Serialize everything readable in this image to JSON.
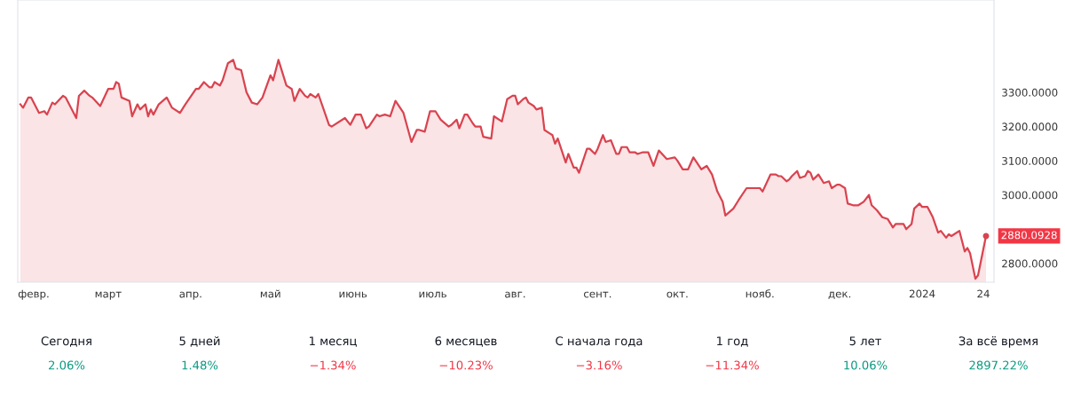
{
  "chart_data": [
    {
      "type": "area",
      "color": "#d9434f",
      "x": [
        "2023-01-27",
        "2023-01-28",
        "2023-01-30",
        "2023-01-31",
        "2023-02-03",
        "2023-02-05",
        "2023-02-06",
        "2023-02-08",
        "2023-02-09",
        "2023-02-12",
        "2023-02-13",
        "2023-02-17",
        "2023-02-18",
        "2023-02-20",
        "2023-02-22",
        "2023-02-23",
        "2023-02-26",
        "2023-03-01",
        "2023-03-03",
        "2023-03-04",
        "2023-03-05",
        "2023-03-06",
        "2023-03-09",
        "2023-03-10",
        "2023-03-12",
        "2023-03-13",
        "2023-03-15",
        "2023-03-16",
        "2023-03-17",
        "2023-03-18",
        "2023-03-20",
        "2023-03-23",
        "2023-03-25",
        "2023-03-28",
        "2023-03-30",
        "2023-04-03",
        "2023-04-04",
        "2023-04-06",
        "2023-04-08",
        "2023-04-09",
        "2023-04-10",
        "2023-04-12",
        "2023-04-13",
        "2023-04-15",
        "2023-04-17",
        "2023-04-18",
        "2023-04-20",
        "2023-04-22",
        "2023-04-24",
        "2023-04-26",
        "2023-04-28",
        "2023-05-01",
        "2023-05-02",
        "2023-05-04",
        "2023-05-07",
        "2023-05-09",
        "2023-05-10",
        "2023-05-12",
        "2023-05-14",
        "2023-05-15",
        "2023-05-16",
        "2023-05-18",
        "2023-05-19",
        "2023-05-23",
        "2023-05-24",
        "2023-05-29",
        "2023-05-31",
        "2023-06-02",
        "2023-06-04",
        "2023-06-06",
        "2023-06-07",
        "2023-06-10",
        "2023-06-11",
        "2023-06-13",
        "2023-06-15",
        "2023-06-17",
        "2023-06-20",
        "2023-06-23",
        "2023-06-25",
        "2023-06-26",
        "2023-06-28",
        "2023-06-30",
        "2023-07-02",
        "2023-07-04",
        "2023-07-07",
        "2023-07-08",
        "2023-07-10",
        "2023-07-11",
        "2023-07-13",
        "2023-07-14",
        "2023-07-16",
        "2023-07-17",
        "2023-07-19",
        "2023-07-20",
        "2023-07-23",
        "2023-07-24",
        "2023-07-27",
        "2023-07-29",
        "2023-07-31",
        "2023-08-01",
        "2023-08-02",
        "2023-08-04",
        "2023-08-05",
        "2023-08-06",
        "2023-08-08",
        "2023-08-09",
        "2023-08-11",
        "2023-08-12",
        "2023-08-14",
        "2023-08-15",
        "2023-08-16",
        "2023-08-17",
        "2023-08-20",
        "2023-08-21",
        "2023-08-23",
        "2023-08-24",
        "2023-08-25",
        "2023-08-28",
        "2023-08-29",
        "2023-08-31",
        "2023-09-01",
        "2023-09-03",
        "2023-09-04",
        "2023-09-06",
        "2023-09-08",
        "2023-09-09",
        "2023-09-10",
        "2023-09-12",
        "2023-09-13",
        "2023-09-15",
        "2023-09-16",
        "2023-09-18",
        "2023-09-20",
        "2023-09-22",
        "2023-09-24",
        "2023-09-27",
        "2023-09-30",
        "2023-10-01",
        "2023-10-03",
        "2023-10-05",
        "2023-10-07",
        "2023-10-10",
        "2023-10-12",
        "2023-10-14",
        "2023-10-16",
        "2023-10-18",
        "2023-10-19",
        "2023-10-22",
        "2023-10-24",
        "2023-10-27",
        "2023-10-28",
        "2023-10-30",
        "2023-11-01",
        "2023-11-02",
        "2023-11-05",
        "2023-11-07",
        "2023-11-08",
        "2023-11-09",
        "2023-11-11",
        "2023-11-12",
        "2023-11-13",
        "2023-11-15",
        "2023-11-16",
        "2023-11-18",
        "2023-11-19",
        "2023-11-20",
        "2023-11-21",
        "2023-11-23",
        "2023-11-25",
        "2023-11-27",
        "2023-11-28",
        "2023-11-30",
        "2023-12-01",
        "2023-12-03",
        "2023-12-04",
        "2023-12-06",
        "2023-12-08",
        "2023-12-10",
        "2023-12-12",
        "2023-12-13",
        "2023-12-15",
        "2023-12-17",
        "2023-12-19",
        "2023-12-21",
        "2023-12-22",
        "2023-12-24",
        "2023-12-25",
        "2023-12-26",
        "2023-12-28",
        "2023-12-29",
        "2023-12-31",
        "2024-01-01",
        "2024-01-03",
        "2024-01-04",
        "2024-01-05",
        "2024-01-07",
        "2024-01-08",
        "2024-01-10",
        "2024-01-11",
        "2024-01-12",
        "2024-01-13",
        "2024-01-15",
        "2024-01-17",
        "2024-01-18",
        "2024-01-19",
        "2024-01-21",
        "2024-01-22",
        "2024-01-25"
      ],
      "values": [
        3265,
        3255,
        3285,
        3285,
        3240,
        3245,
        3235,
        3270,
        3265,
        3290,
        3285,
        3225,
        3290,
        3305,
        3290,
        3285,
        3260,
        3310,
        3310,
        3330,
        3325,
        3285,
        3275,
        3230,
        3265,
        3250,
        3265,
        3230,
        3250,
        3235,
        3265,
        3285,
        3255,
        3240,
        3265,
        3310,
        3310,
        3330,
        3315,
        3315,
        3330,
        3320,
        3335,
        3385,
        3395,
        3370,
        3365,
        3300,
        3270,
        3265,
        3285,
        3350,
        3335,
        3395,
        3320,
        3310,
        3275,
        3310,
        3290,
        3285,
        3295,
        3285,
        3295,
        3205,
        3200,
        3225,
        3205,
        3235,
        3235,
        3195,
        3200,
        3235,
        3230,
        3235,
        3230,
        3275,
        3240,
        3155,
        3190,
        3190,
        3185,
        3245,
        3245,
        3220,
        3200,
        3205,
        3220,
        3195,
        3235,
        3235,
        3210,
        3200,
        3200,
        3170,
        3165,
        3230,
        3215,
        3280,
        3290,
        3290,
        3265,
        3280,
        3285,
        3270,
        3260,
        3250,
        3255,
        3190,
        3180,
        3175,
        3150,
        3165,
        3095,
        3120,
        3080,
        3080,
        3065,
        3135,
        3135,
        3120,
        3135,
        3175,
        3155,
        3160,
        3120,
        3120,
        3140,
        3140,
        3125,
        3125,
        3120,
        3125,
        3125,
        3085,
        3130,
        3105,
        3110,
        3100,
        3075,
        3075,
        3110,
        3075,
        3085,
        3060,
        3010,
        2980,
        2940,
        2960,
        2985,
        3020,
        3020,
        3020,
        3020,
        3010,
        3060,
        3060,
        3055,
        3055,
        3040,
        3045,
        3055,
        3070,
        3050,
        3055,
        3070,
        3065,
        3045,
        3060,
        3035,
        3040,
        3020,
        3030,
        3030,
        3020,
        2975,
        2970,
        2970,
        2980,
        3000,
        2970,
        2955,
        2935,
        2930,
        2905,
        2915,
        2915,
        2915,
        2900,
        2915,
        2960,
        2975,
        2965,
        2965,
        2950,
        2935,
        2890,
        2895,
        2875,
        2885,
        2880,
        2885,
        2895,
        2835,
        2845,
        2830,
        2755,
        2765,
        2880.0928
      ],
      "xlim": [
        "2023-01-26",
        "2024-01-28"
      ],
      "xticks": [
        {
          "value": "2023-02-01",
          "label": "февр."
        },
        {
          "value": "2023-03-01",
          "label": "март"
        },
        {
          "value": "2023-04-01",
          "label": "апр."
        },
        {
          "value": "2023-05-01",
          "label": "май"
        },
        {
          "value": "2023-06-01",
          "label": "июнь"
        },
        {
          "value": "2023-07-01",
          "label": "июль"
        },
        {
          "value": "2023-08-01",
          "label": "авг."
        },
        {
          "value": "2023-09-01",
          "label": "сент."
        },
        {
          "value": "2023-10-01",
          "label": "окт."
        },
        {
          "value": "2023-11-01",
          "label": "нояб."
        },
        {
          "value": "2023-12-01",
          "label": "дек."
        },
        {
          "value": "2024-01-01",
          "label": "2024"
        },
        {
          "value": "2024-01-24",
          "label": "24"
        }
      ],
      "ylim": [
        2745,
        3570
      ],
      "yticks": [
        {
          "value": 2800,
          "label": "2800.0000"
        },
        {
          "value": 3000,
          "label": "3000.0000"
        },
        {
          "value": 3100,
          "label": "3100.0000"
        },
        {
          "value": 3200,
          "label": "3200.0000"
        },
        {
          "value": 3300,
          "label": "3300.0000"
        }
      ],
      "annotations": [
        {
          "text": "2880.0928",
          "x": "2024-01-25",
          "y": 2880.0928
        }
      ],
      "grid": false,
      "legend": false
    },
    {
      "type": "other",
      "categories": [
        "Сегодня",
        "5 дней",
        "1 месяц",
        "6 месяцев",
        "С начала года",
        "1 год",
        "5 лет",
        "За всё время"
      ],
      "value_labels": [
        "2.06%",
        "1.48%",
        "−1.34%",
        "−10.23%",
        "−3.16%",
        "−11.34%",
        "10.06%",
        "2897.22%"
      ],
      "colors": [
        "#089981",
        "#089981",
        "#f23645",
        "#f23645",
        "#f23645",
        "#f23645",
        "#089981",
        "#089981"
      ]
    }
  ]
}
